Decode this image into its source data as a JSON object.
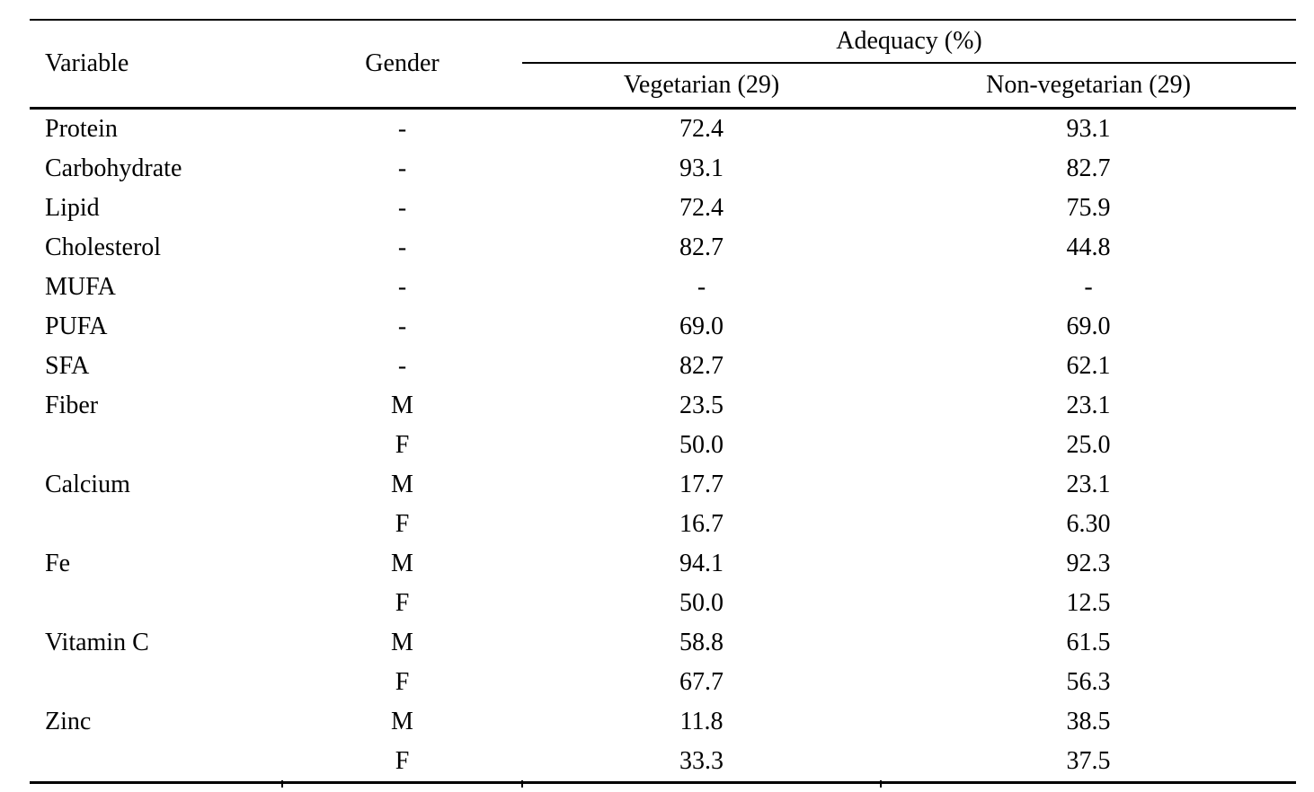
{
  "table": {
    "header": {
      "variable": "Variable",
      "gender": "Gender",
      "adequacy": "Adequacy (%)",
      "vegetarian": "Vegetarian (29)",
      "non_vegetarian": "Non-vegetarian (29)"
    },
    "rows": [
      {
        "variable": "Protein",
        "gender": "-",
        "vegetarian": "72.4",
        "non_vegetarian": "93.1"
      },
      {
        "variable": "Carbohydrate",
        "gender": "-",
        "vegetarian": "93.1",
        "non_vegetarian": "82.7"
      },
      {
        "variable": "Lipid",
        "gender": "-",
        "vegetarian": "72.4",
        "non_vegetarian": "75.9"
      },
      {
        "variable": "Cholesterol",
        "gender": "-",
        "vegetarian": "82.7",
        "non_vegetarian": "44.8"
      },
      {
        "variable": "MUFA",
        "gender": "-",
        "vegetarian": "-",
        "non_vegetarian": "-"
      },
      {
        "variable": "PUFA",
        "gender": "-",
        "vegetarian": "69.0",
        "non_vegetarian": "69.0"
      },
      {
        "variable": "SFA",
        "gender": "-",
        "vegetarian": "82.7",
        "non_vegetarian": "62.1"
      },
      {
        "variable": "Fiber",
        "gender": "M",
        "vegetarian": "23.5",
        "non_vegetarian": "23.1"
      },
      {
        "variable": "",
        "gender": "F",
        "vegetarian": "50.0",
        "non_vegetarian": "25.0"
      },
      {
        "variable": "Calcium",
        "gender": "M",
        "vegetarian": "17.7",
        "non_vegetarian": "23.1"
      },
      {
        "variable": "",
        "gender": "F",
        "vegetarian": "16.7",
        "non_vegetarian": "6.30"
      },
      {
        "variable": "Fe",
        "gender": "M",
        "vegetarian": "94.1",
        "non_vegetarian": "92.3"
      },
      {
        "variable": "",
        "gender": "F",
        "vegetarian": "50.0",
        "non_vegetarian": "12.5"
      },
      {
        "variable": "Vitamin C",
        "gender": "M",
        "vegetarian": "58.8",
        "non_vegetarian": "61.5"
      },
      {
        "variable": "",
        "gender": "F",
        "vegetarian": "67.7",
        "non_vegetarian": "56.3"
      },
      {
        "variable": "Zinc",
        "gender": "M",
        "vegetarian": "11.8",
        "non_vegetarian": "38.5"
      },
      {
        "variable": "",
        "gender": "F",
        "vegetarian": "33.3",
        "non_vegetarian": "37.5"
      }
    ]
  },
  "colors": {
    "text": "#000000",
    "rule": "#000000",
    "background": "#ffffff"
  }
}
